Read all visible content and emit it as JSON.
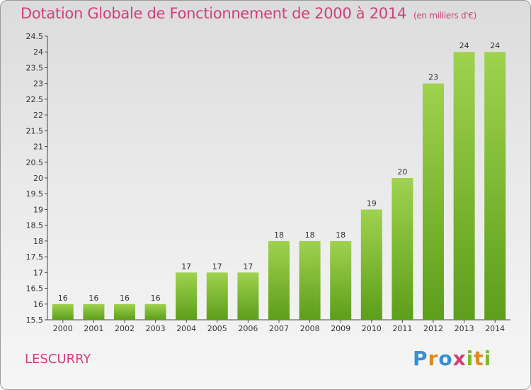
{
  "header": {
    "title": "Dotation Globale de Fonctionnement de 2000 à 2014",
    "subtitle": "(en milliers d'€)"
  },
  "commune": "LESCURRY",
  "logo": {
    "text": "Proxiti"
  },
  "colors": {
    "title": "#d0407a",
    "bar_top": "#9fd24e",
    "bar_bottom": "#5d9e1a"
  },
  "chart_data": {
    "type": "bar",
    "title": "Dotation Globale de Fonctionnement de 2000 à 2014",
    "subtitle": "(en milliers d'€)",
    "categories": [
      "2000",
      "2001",
      "2002",
      "2003",
      "2004",
      "2005",
      "2006",
      "2007",
      "2008",
      "2009",
      "2010",
      "2011",
      "2012",
      "2013",
      "2014"
    ],
    "values": [
      16,
      16,
      16,
      16,
      17,
      17,
      17,
      18,
      18,
      18,
      19,
      20,
      23,
      24,
      24
    ],
    "labels": [
      "16",
      "16",
      "16",
      "16",
      "17",
      "17",
      "17",
      "18",
      "18",
      "18",
      "19",
      "20",
      "23",
      "24",
      "24"
    ],
    "ylim": [
      15.5,
      24.5
    ],
    "yticks": [
      "15.5",
      "16",
      "16.5",
      "17",
      "17.5",
      "18",
      "18.5",
      "19",
      "19.5",
      "20",
      "20.5",
      "21",
      "21.5",
      "22",
      "22.5",
      "23",
      "23.5",
      "24",
      "24.5"
    ],
    "xlabel": "",
    "ylabel": "",
    "grid": false,
    "legend": "none"
  }
}
